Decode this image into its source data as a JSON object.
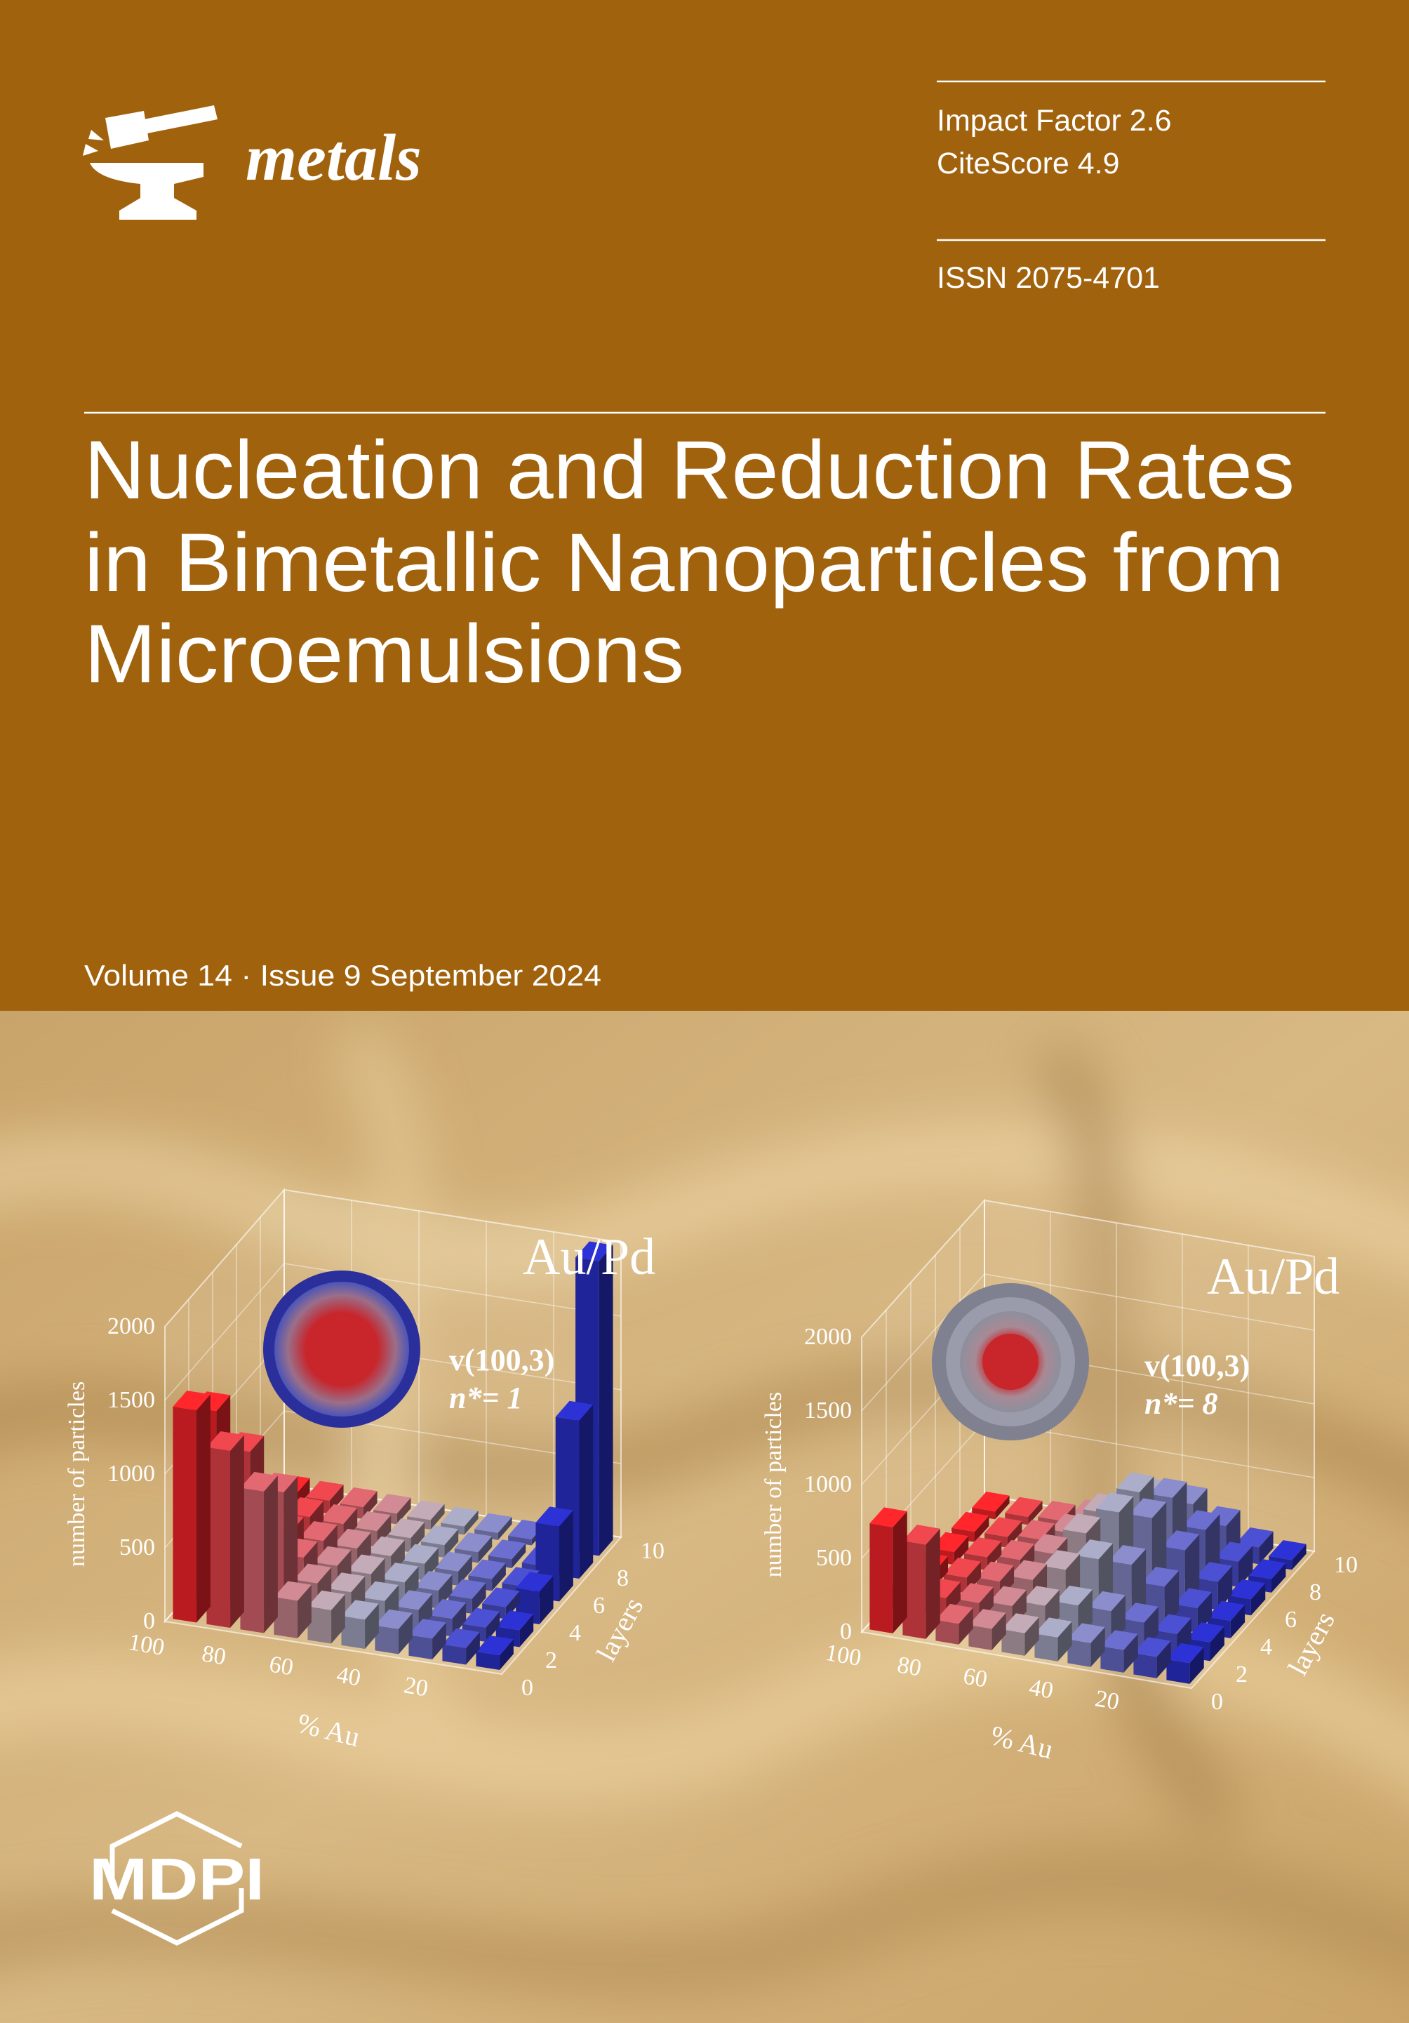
{
  "journal": {
    "name": "metals",
    "impact_factor": "Impact Factor 2.6",
    "citescore": "CiteScore 4.9",
    "issn": "ISSN 2075-4701"
  },
  "article": {
    "title_lines": [
      "Nucleation and Reduction Rates",
      "in Bimetallic Nanoparticles from",
      "Microemulsions"
    ]
  },
  "issue": "Volume 14 · Issue 9 September 2024",
  "figures": [
    {
      "title": "Au/Pd",
      "condition": "v(100,3)",
      "nucleus": "n*= 1",
      "y_label": "number of particles",
      "y_ticks": [
        "0",
        "500",
        "1000",
        "1500",
        "2000"
      ],
      "x_label": "% Au",
      "x_ticks": [
        "100",
        "80",
        "60",
        "40",
        "20"
      ],
      "z_label": "layers",
      "z_ticks": [
        "0",
        "2",
        "4",
        "6",
        "8",
        "10"
      ]
    },
    {
      "title": "Au/Pd",
      "condition": "v(100,3)",
      "nucleus": "n*= 8",
      "y_label": "number of particles",
      "y_ticks": [
        "0",
        "500",
        "1000",
        "1500",
        "2000"
      ],
      "x_label": "% Au",
      "x_ticks": [
        "100",
        "80",
        "60",
        "40",
        "20"
      ],
      "z_label": "layers",
      "z_ticks": [
        "0",
        "2",
        "4",
        "6",
        "8",
        "10"
      ]
    }
  ],
  "publisher": "MDPI"
}
